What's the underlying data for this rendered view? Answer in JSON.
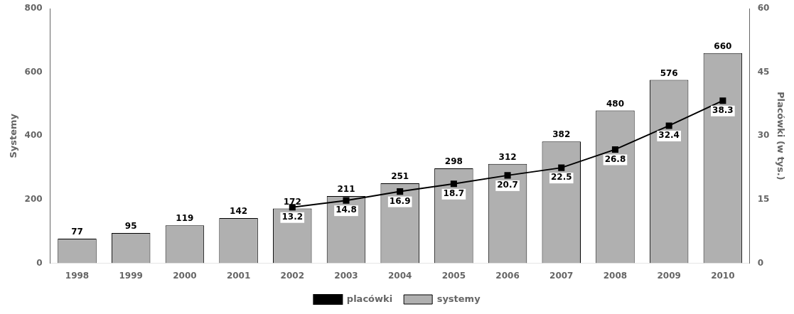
{
  "chart_data": {
    "type": "bar",
    "categories": [
      "1998",
      "1999",
      "2000",
      "2001",
      "2002",
      "2003",
      "2004",
      "2005",
      "2006",
      "2007",
      "2008",
      "2009",
      "2010"
    ],
    "series": [
      {
        "name": "systemy",
        "type": "bar",
        "color": "#b0b0b0",
        "axis": "y",
        "values": [
          77,
          95,
          119,
          142,
          172,
          211,
          251,
          298,
          312,
          382,
          480,
          576,
          660
        ]
      },
      {
        "name": "placówki",
        "type": "line",
        "color": "#000000",
        "marker": "square",
        "axis": "y2",
        "values": [
          null,
          null,
          null,
          null,
          13.2,
          14.8,
          16.9,
          18.7,
          20.7,
          22.5,
          26.8,
          32.4,
          38.3
        ]
      }
    ],
    "ylabel": "Systemy",
    "y2label": "Placówki (w tys.)",
    "ylim": [
      0,
      800
    ],
    "yticks": [
      0,
      200,
      400,
      600,
      800
    ],
    "y2lim": [
      0,
      60
    ],
    "y2ticks": [
      0,
      15,
      30,
      45,
      60
    ],
    "grid": false,
    "legend": "bottom",
    "data_labels": true
  }
}
